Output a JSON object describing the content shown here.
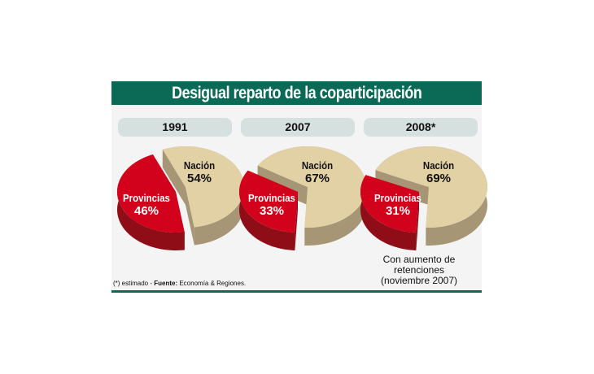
{
  "title": "Desigual reparto de la coparticipación",
  "chart_data": [
    {
      "type": "pie",
      "title": "1991",
      "slices": [
        {
          "label": "Nación",
          "value": 54,
          "text": "54%"
        },
        {
          "label": "Provincias",
          "value": 46,
          "text": "46%"
        }
      ]
    },
    {
      "type": "pie",
      "title": "2007",
      "slices": [
        {
          "label": "Nación",
          "value": 67,
          "text": "67%"
        },
        {
          "label": "Provincias",
          "value": 33,
          "text": "33%"
        }
      ]
    },
    {
      "type": "pie",
      "title": "2008*",
      "slices": [
        {
          "label": "Nación",
          "value": 69,
          "text": "69%"
        },
        {
          "label": "Provincias",
          "value": 31,
          "text": "31%"
        }
      ],
      "annotation_line1": "Con aumento de retenciones",
      "annotation_line2": "(noviembre 2007)"
    }
  ],
  "colors": {
    "nacion": "#e3d1a6",
    "nacion_side": "#a69676",
    "provincias": "#d2021c",
    "provincias_side": "#8e0d16",
    "header": "#0b6a56"
  },
  "footnote": {
    "asterisk": "(*) estimado - ",
    "source_label": "Fuente:",
    "source": " Economía & Regiones."
  }
}
